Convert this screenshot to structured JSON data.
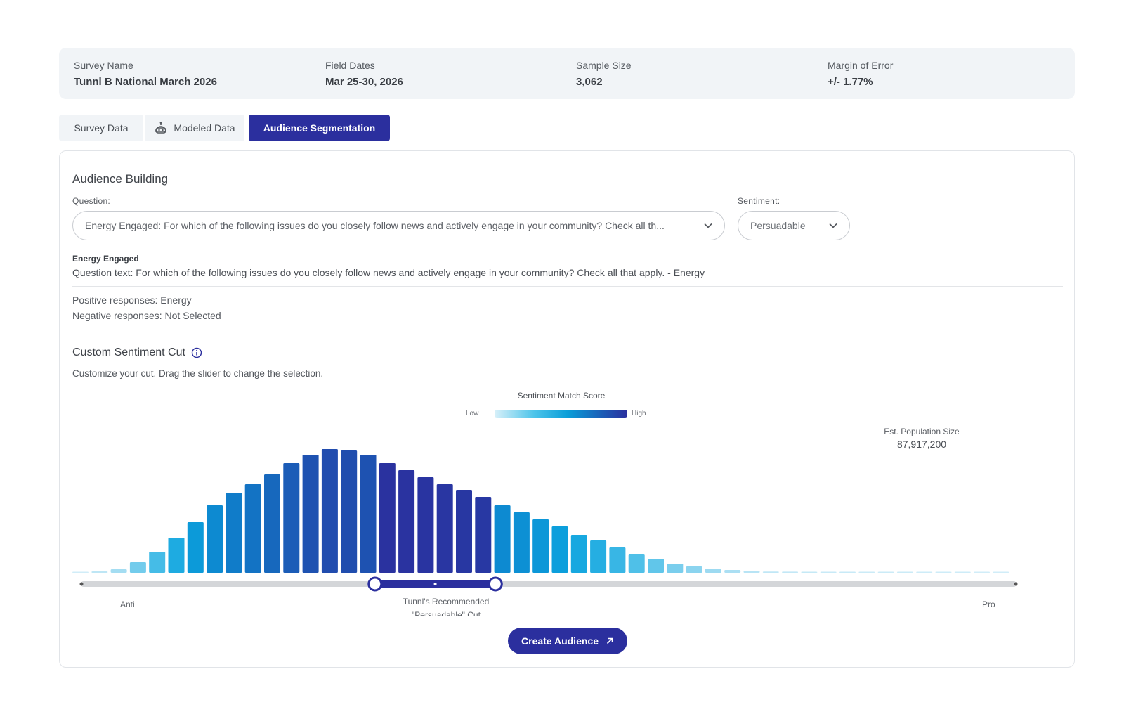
{
  "survey": {
    "name_label": "Survey Name",
    "name_value": "Tunnl B National March 2026",
    "dates_label": "Field Dates",
    "dates_value": "Mar 25-30, 2026",
    "sample_label": "Sample Size",
    "sample_value": "3,062",
    "moe_label": "Margin of Error",
    "moe_value": "+/- 1.77%"
  },
  "tabs": [
    {
      "label": "Survey Data"
    },
    {
      "label": "Modeled Data",
      "icon": "robot-icon"
    },
    {
      "label": "Audience Segmentation",
      "active": true
    }
  ],
  "audience": {
    "title": "Audience Building",
    "question_label": "Question:",
    "question_value": "Energy Engaged: For which of the following issues do you closely follow news and actively engage in your community? Check all th...",
    "sentiment_label": "Sentiment:",
    "sentiment_value": "Persuadable",
    "q_name": "Energy Engaged",
    "q_text": "Question text: For which of the following issues do you closely follow news and actively engage in your community? Check all that apply. - Energy",
    "positive": "Positive responses: Energy",
    "negative": "Negative responses: Not Selected"
  },
  "custom_cut": {
    "title": "Custom Sentiment Cut",
    "subtitle": "Customize your cut. Drag the slider to change the selection.",
    "legend_title": "Sentiment Match Score",
    "legend_low": "Low",
    "legend_high": "High",
    "pop_label": "Est. Population Size",
    "pop_value": "87,917,200",
    "axis_left": "Anti",
    "axis_right": "Pro",
    "recommended_line1": "Tunnl's Recommended",
    "recommended_line2": "\"Persuadable\" Cut",
    "create_button": "Create Audience"
  },
  "colors": {
    "accent": "#2b2f9e",
    "bar_scale": [
      "#e6f5fb",
      "#8fd5ef",
      "#47bde7",
      "#0ca3de",
      "#0d86cf",
      "#1a5fb8",
      "#2b2f9e"
    ]
  },
  "chart_data": {
    "type": "bar",
    "values": [
      0.3,
      1,
      2.5,
      7.5,
      15,
      25,
      36,
      48,
      57,
      63,
      70,
      78,
      84,
      88,
      87,
      84,
      78,
      73,
      68,
      63,
      59,
      54,
      48,
      43,
      38,
      33,
      27,
      23,
      18,
      13,
      10,
      6.5,
      4.5,
      3,
      2,
      1.3,
      0.9,
      0.8,
      0.7,
      0.6,
      0.6,
      0.5,
      0.5,
      0.5,
      0.4,
      0.4,
      0.4,
      0.3,
      0.3
    ],
    "selection": {
      "start_index": 16,
      "end_index": 21
    },
    "ylim": [
      0,
      100
    ],
    "grid": false
  }
}
